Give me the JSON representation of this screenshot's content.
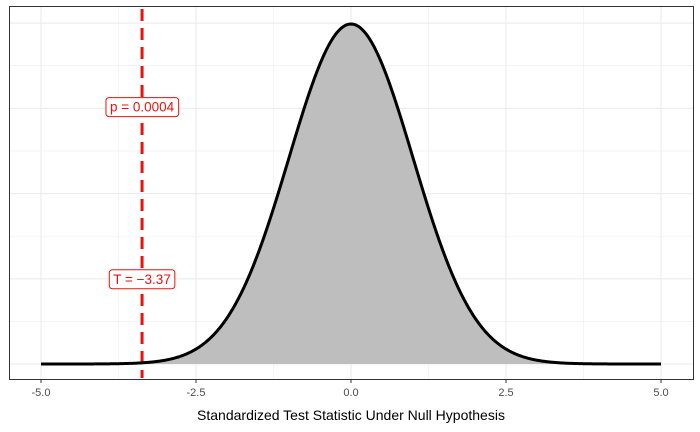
{
  "chart_data": {
    "type": "area",
    "title": "",
    "xlabel": "Standardized Test Statistic Under Null Hypothesis",
    "ylabel": "",
    "xlim": [
      -5.0,
      5.0
    ],
    "ylim": [
      0,
      0.4
    ],
    "x_ticks": [
      -5.0,
      -2.5,
      0.0,
      2.5,
      5.0
    ],
    "x_tick_labels": [
      "-5.0",
      "-2.5",
      "0.0",
      "2.5",
      "5.0"
    ],
    "grid": true,
    "series": [
      {
        "distribution": "standard normal density",
        "x": [
          -5.0,
          -4.5,
          -4.0,
          -3.5,
          -3.0,
          -2.5,
          -2.0,
          -1.5,
          -1.0,
          -0.5,
          0.0,
          0.5,
          1.0,
          1.5,
          2.0,
          2.5,
          3.0,
          3.5,
          4.0,
          4.5,
          5.0
        ],
        "y": [
          1.5e-06,
          1.6e-05,
          0.000134,
          0.000873,
          0.00443,
          0.0175,
          0.054,
          0.1295,
          0.242,
          0.3521,
          0.3989,
          0.3521,
          0.242,
          0.1295,
          0.054,
          0.0175,
          0.00443,
          0.000873,
          0.000134,
          1.6e-05,
          1.5e-06
        ],
        "fill_color": "#bebebe",
        "line_color": "#000000"
      }
    ],
    "reference_line": {
      "x": -3.37,
      "color": "#e8130f",
      "style": "dashed"
    },
    "annotations": [
      {
        "text": "p = 0.0004",
        "x": -3.37,
        "y": 0.302
      },
      {
        "text": "T = −3.37",
        "x": -3.37,
        "y": 0.1
      }
    ],
    "colors": {
      "panel_border": "#333333",
      "grid": "#ebebeb",
      "annotation": "#e8130f"
    }
  }
}
